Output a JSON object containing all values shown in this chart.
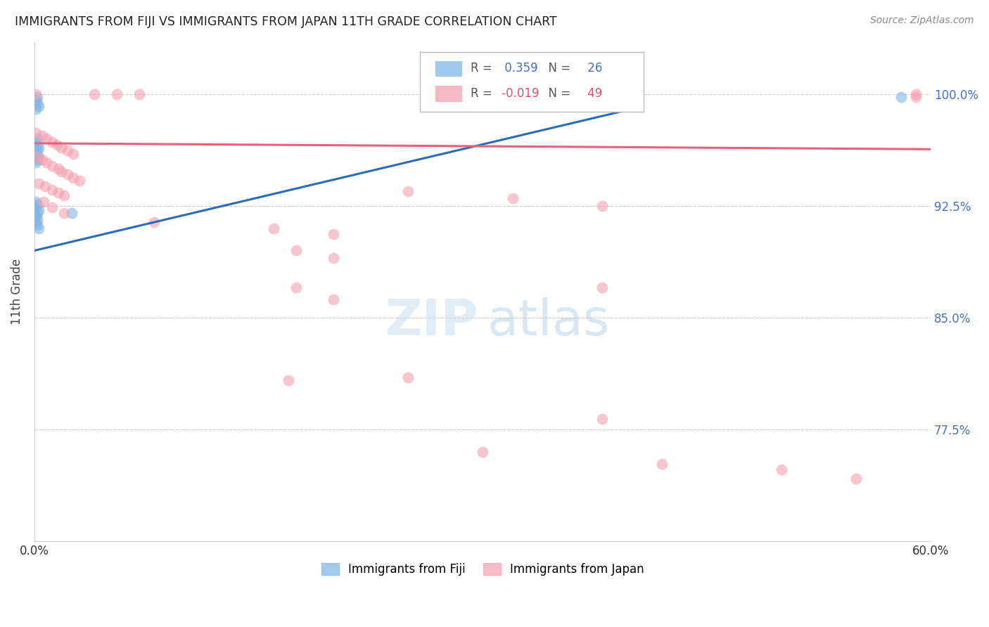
{
  "title": "IMMIGRANTS FROM FIJI VS IMMIGRANTS FROM JAPAN 11TH GRADE CORRELATION CHART",
  "source": "Source: ZipAtlas.com",
  "ylabel": "11th Grade",
  "fiji_color": "#7EB6E8",
  "japan_color": "#F4A0B0",
  "fiji_line_color": "#2B6CB8",
  "japan_line_color": "#E8607A",
  "fiji_R": 0.359,
  "fiji_N": 26,
  "japan_R": -0.019,
  "japan_N": 49,
  "xlim": [
    0.0,
    0.6
  ],
  "ylim": [
    0.7,
    1.035
  ],
  "yticks": [
    0.775,
    0.85,
    0.925,
    1.0
  ],
  "ytick_labels": [
    "77.5%",
    "85.0%",
    "92.5%",
    "100.0%"
  ],
  "fiji_line_x0": 0.0,
  "fiji_line_y0": 0.895,
  "fiji_line_x1": 0.4,
  "fiji_line_y1": 0.99,
  "japan_line_x0": 0.0,
  "japan_line_y0": 0.967,
  "japan_line_x1": 0.6,
  "japan_line_y1": 0.963,
  "fiji_scatter_x": [
    0.002,
    0.001,
    0.002,
    0.003,
    0.001,
    0.002,
    0.001,
    0.002,
    0.003,
    0.002,
    0.001,
    0.003,
    0.002,
    0.001,
    0.001,
    0.002,
    0.001,
    0.003,
    0.002,
    0.001,
    0.002,
    0.001,
    0.002,
    0.003,
    0.025,
    0.58
  ],
  "fiji_scatter_y": [
    0.998,
    0.996,
    0.994,
    0.992,
    0.99,
    0.97,
    0.968,
    0.966,
    0.964,
    0.962,
    0.96,
    0.958,
    0.956,
    0.954,
    0.928,
    0.926,
    0.924,
    0.922,
    0.92,
    0.918,
    0.916,
    0.914,
    0.912,
    0.91,
    0.92,
    0.998
  ],
  "japan_scatter_x": [
    0.001,
    0.04,
    0.055,
    0.07,
    0.59,
    0.59,
    0.001,
    0.005,
    0.008,
    0.012,
    0.015,
    0.018,
    0.022,
    0.026,
    0.002,
    0.005,
    0.008,
    0.012,
    0.016,
    0.018,
    0.022,
    0.026,
    0.03,
    0.003,
    0.007,
    0.012,
    0.016,
    0.02,
    0.006,
    0.012,
    0.02,
    0.08,
    0.16,
    0.2,
    0.25,
    0.32,
    0.38,
    0.175,
    0.2,
    0.38,
    0.175,
    0.2,
    0.25,
    0.17,
    0.38,
    0.3,
    0.42,
    0.5,
    0.55
  ],
  "japan_scatter_y": [
    1.0,
    1.0,
    1.0,
    1.0,
    1.0,
    0.998,
    0.974,
    0.972,
    0.97,
    0.968,
    0.966,
    0.964,
    0.962,
    0.96,
    0.958,
    0.956,
    0.954,
    0.952,
    0.95,
    0.948,
    0.946,
    0.944,
    0.942,
    0.94,
    0.938,
    0.936,
    0.934,
    0.932,
    0.928,
    0.924,
    0.92,
    0.914,
    0.91,
    0.906,
    0.935,
    0.93,
    0.925,
    0.895,
    0.89,
    0.87,
    0.87,
    0.862,
    0.81,
    0.808,
    0.782,
    0.76,
    0.752,
    0.748,
    0.742
  ]
}
